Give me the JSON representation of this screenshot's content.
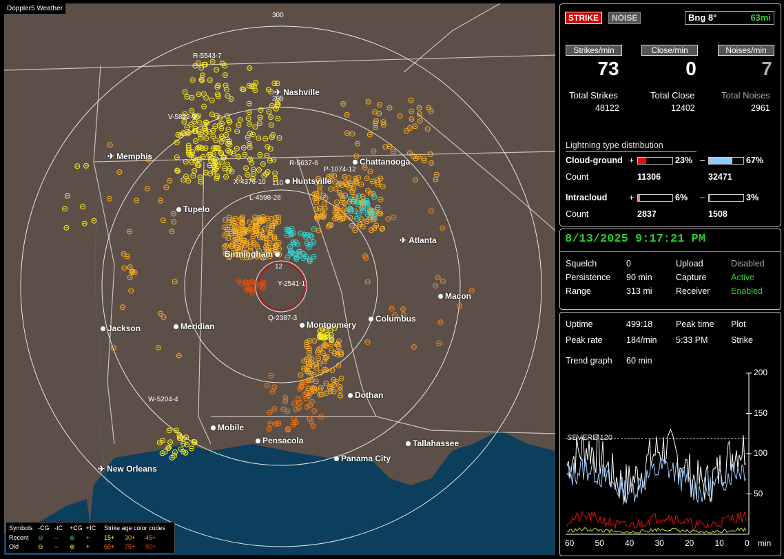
{
  "app": {
    "title": "Doppler5 Weather"
  },
  "map": {
    "range_ring_labels": [
      "300",
      "205",
      "110",
      "12"
    ],
    "cities": [
      {
        "name": "Nashville",
        "marker": "airport"
      },
      {
        "name": "Memphis",
        "marker": "airport"
      },
      {
        "name": "Chattanooga",
        "marker": "dot"
      },
      {
        "name": "Huntsville",
        "marker": "dot"
      },
      {
        "name": "Tupelo",
        "marker": "dot"
      },
      {
        "name": "Atlanta",
        "marker": "airport"
      },
      {
        "name": "Birmingham",
        "marker": "dot"
      },
      {
        "name": "Macon",
        "marker": "dot"
      },
      {
        "name": "Jackson",
        "marker": "dot"
      },
      {
        "name": "Meridian",
        "marker": "dot"
      },
      {
        "name": "Montgomery",
        "marker": "dot"
      },
      {
        "name": "Columbus",
        "marker": "dot"
      },
      {
        "name": "Dothan",
        "marker": "dot"
      },
      {
        "name": "Mobile",
        "marker": "dot"
      },
      {
        "name": "Pensacola",
        "marker": "dot"
      },
      {
        "name": "Tallahassee",
        "marker": "dot"
      },
      {
        "name": "Panama City",
        "marker": "dot"
      },
      {
        "name": "New Orleans",
        "marker": "airport"
      }
    ],
    "storm_labels": [
      "R-5543-7",
      "V-5822-9",
      "R-5637-6",
      "P-1074-12",
      "X-4376-10",
      "L-4598-28",
      "Y-2541-1",
      "Q-2387-3",
      "W-5204-4"
    ],
    "legend": {
      "row1": [
        "Symbols",
        "-CG",
        "-IC",
        "+CG",
        "+IC",
        "Strike age color codes"
      ],
      "recent": {
        "label": "Recent",
        "ages": [
          "15+",
          "30+",
          "45+"
        ]
      },
      "old": {
        "label": "Old",
        "ages": [
          "60+",
          "75+",
          "90+"
        ]
      }
    }
  },
  "status": {
    "strike_btn": "STRIKE",
    "noise_btn": "NOISE",
    "bearing_label": "Bng 8°",
    "distance": "63mi",
    "strikes_per_min_label": "Strikes/min",
    "close_per_min_label": "Close/min",
    "noises_per_min_label": "Noises/min",
    "strikes_per_min": "73",
    "close_per_min": "0",
    "noises_per_min": "7",
    "total_strikes_label": "Total Strikes",
    "total_close_label": "Total Close",
    "total_noises_label": "Total Noises",
    "total_strikes": "48122",
    "total_close": "12402",
    "total_noises": "2961",
    "dist_title": "Lightning type distribution",
    "cg_label": "Cloud-ground",
    "ic_label": "Intracloud",
    "count_label": "Count",
    "plus": "+",
    "minus": "–",
    "cg_pos_pct": "23%",
    "cg_neg_pct": "67%",
    "cg_pos_count": "11306",
    "cg_neg_count": "32471",
    "ic_pos_pct": "6%",
    "ic_neg_pct": "3%",
    "ic_pos_count": "2837",
    "ic_neg_count": "1508",
    "cg_pos_frac": 0.23,
    "cg_neg_frac": 0.67,
    "ic_pos_frac": 0.06,
    "ic_neg_frac": 0.03
  },
  "settings": {
    "datetime": "8/13/2025 9:17:21 PM",
    "squelch_label": "Squelch",
    "squelch": "0",
    "persistence_label": "Persistence",
    "persistence": "90 min",
    "range_label": "Range",
    "range": "313 mi",
    "upload_label": "Upload",
    "upload": "Disabled",
    "capture_label": "Capture",
    "capture": "Active",
    "receiver_label": "Receiver",
    "receiver": "Enabled"
  },
  "trend": {
    "uptime_label": "Uptime",
    "uptime": "499:18",
    "peak_time_label": "Peak time",
    "peak_time": "5:33 PM",
    "plot_label": "Plot",
    "plot": "Strike",
    "peak_rate_label": "Peak rate",
    "peak_rate": "184/min",
    "trend_label": "Trend graph",
    "trend_window": "60 min",
    "severe_label": "SEVERE 120",
    "y_ticks": [
      "200",
      "150",
      "100",
      "50"
    ],
    "x_ticks": [
      "60",
      "50",
      "40",
      "30",
      "20",
      "10",
      "0"
    ],
    "x_unit": "min",
    "colors": {
      "total": "#ffffff",
      "cg_neg": "#9ecbff",
      "cg_pos": "#e01010",
      "ic": "#b9e23a"
    }
  }
}
